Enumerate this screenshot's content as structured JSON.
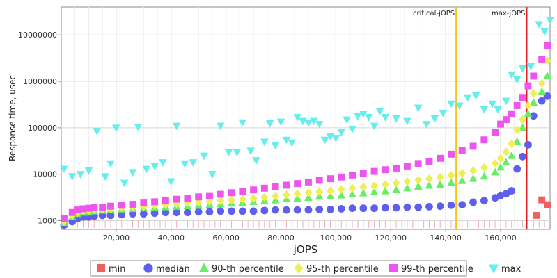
{
  "chart_data": {
    "type": "scatter",
    "title": "",
    "xlabel": "jOPS",
    "ylabel": "Response time, usec",
    "x_scale": "linear",
    "y_scale": "log",
    "xlim": [
      0,
      178000
    ],
    "ylim": [
      650,
      40000000
    ],
    "x_ticks": [
      20000,
      40000,
      60000,
      80000,
      100000,
      120000,
      140000,
      160000
    ],
    "x_tick_labels": [
      "20,000",
      "40,000",
      "60,000",
      "80,000",
      "100,000",
      "120,000",
      "140,000",
      "160,000"
    ],
    "y_ticks": [
      1000,
      10000,
      100000,
      1000000,
      10000000
    ],
    "y_tick_labels": [
      "1000",
      "10000",
      "100000",
      "1000000",
      "10000000"
    ],
    "grid": true,
    "legend_position": "bottom",
    "vertical_markers": [
      {
        "label": "critical-jOPS",
        "x": 143800,
        "color": "#f5c518"
      },
      {
        "label": "max-jOPS",
        "x": 169500,
        "color": "#e02020"
      }
    ],
    "series": [
      {
        "name": "min",
        "color": "#f06060",
        "marker": "square",
        "points": [
          [
            173000,
            1300
          ],
          [
            175000,
            2800
          ],
          [
            177000,
            2200
          ]
        ]
      },
      {
        "name": "median",
        "color": "#5f5fef",
        "marker": "circle",
        "points": [
          [
            1000,
            800
          ],
          [
            4000,
            950
          ],
          [
            6000,
            1100
          ],
          [
            8000,
            1200
          ],
          [
            10000,
            1200
          ],
          [
            12000,
            1250
          ],
          [
            15000,
            1300
          ],
          [
            18000,
            1300
          ],
          [
            22000,
            1350
          ],
          [
            26000,
            1400
          ],
          [
            30000,
            1400
          ],
          [
            34000,
            1450
          ],
          [
            38000,
            1500
          ],
          [
            42000,
            1500
          ],
          [
            46000,
            1500
          ],
          [
            50000,
            1550
          ],
          [
            54000,
            1550
          ],
          [
            58000,
            1600
          ],
          [
            62000,
            1600
          ],
          [
            66000,
            1600
          ],
          [
            70000,
            1600
          ],
          [
            74000,
            1650
          ],
          [
            78000,
            1700
          ],
          [
            82000,
            1700
          ],
          [
            86000,
            1700
          ],
          [
            90000,
            1700
          ],
          [
            94000,
            1750
          ],
          [
            98000,
            1750
          ],
          [
            102000,
            1800
          ],
          [
            106000,
            1850
          ],
          [
            110000,
            1850
          ],
          [
            114000,
            1850
          ],
          [
            118000,
            1900
          ],
          [
            122000,
            1900
          ],
          [
            126000,
            1950
          ],
          [
            130000,
            1950
          ],
          [
            134000,
            2000
          ],
          [
            138000,
            2050
          ],
          [
            142000,
            2150
          ],
          [
            146000,
            2200
          ],
          [
            150000,
            2500
          ],
          [
            154000,
            2700
          ],
          [
            158000,
            3100
          ],
          [
            160000,
            3500
          ],
          [
            162000,
            3800
          ],
          [
            164000,
            4400
          ],
          [
            166000,
            13000
          ],
          [
            168000,
            24000
          ],
          [
            170000,
            43000
          ],
          [
            172000,
            180000
          ],
          [
            175000,
            380000
          ],
          [
            177000,
            480000
          ]
        ]
      },
      {
        "name": "90-th percentile",
        "color": "#66ee66",
        "marker": "triangle-up",
        "points": [
          [
            1000,
            900
          ],
          [
            4000,
            1200
          ],
          [
            6000,
            1400
          ],
          [
            8000,
            1500
          ],
          [
            10000,
            1500
          ],
          [
            12000,
            1600
          ],
          [
            15000,
            1650
          ],
          [
            18000,
            1700
          ],
          [
            22000,
            1750
          ],
          [
            26000,
            1800
          ],
          [
            30000,
            1850
          ],
          [
            34000,
            1900
          ],
          [
            38000,
            1950
          ],
          [
            42000,
            2000
          ],
          [
            46000,
            2050
          ],
          [
            50000,
            2100
          ],
          [
            54000,
            2150
          ],
          [
            58000,
            2250
          ],
          [
            62000,
            2350
          ],
          [
            66000,
            2450
          ],
          [
            70000,
            2550
          ],
          [
            74000,
            2650
          ],
          [
            78000,
            2750
          ],
          [
            82000,
            2900
          ],
          [
            86000,
            3000
          ],
          [
            90000,
            3100
          ],
          [
            94000,
            3300
          ],
          [
            98000,
            3400
          ],
          [
            102000,
            3500
          ],
          [
            106000,
            3700
          ],
          [
            110000,
            3900
          ],
          [
            114000,
            4100
          ],
          [
            118000,
            4300
          ],
          [
            122000,
            4600
          ],
          [
            126000,
            5000
          ],
          [
            130000,
            5400
          ],
          [
            134000,
            5700
          ],
          [
            138000,
            6000
          ],
          [
            142000,
            6600
          ],
          [
            146000,
            7200
          ],
          [
            150000,
            8000
          ],
          [
            154000,
            9000
          ],
          [
            158000,
            11000
          ],
          [
            160000,
            14000
          ],
          [
            162000,
            18000
          ],
          [
            164000,
            25000
          ],
          [
            166000,
            50000
          ],
          [
            168000,
            100000
          ],
          [
            170000,
            200000
          ],
          [
            172000,
            350000
          ],
          [
            175000,
            600000
          ],
          [
            177000,
            1300000
          ]
        ]
      },
      {
        "name": "95-th percentile",
        "color": "#eeee55",
        "marker": "diamond",
        "points": [
          [
            1000,
            950
          ],
          [
            4000,
            1300
          ],
          [
            6000,
            1500
          ],
          [
            8000,
            1600
          ],
          [
            10000,
            1650
          ],
          [
            12000,
            1700
          ],
          [
            15000,
            1750
          ],
          [
            18000,
            1800
          ],
          [
            22000,
            1900
          ],
          [
            26000,
            1950
          ],
          [
            30000,
            2000
          ],
          [
            34000,
            2100
          ],
          [
            38000,
            2200
          ],
          [
            42000,
            2300
          ],
          [
            46000,
            2400
          ],
          [
            50000,
            2500
          ],
          [
            54000,
            2600
          ],
          [
            58000,
            2700
          ],
          [
            62000,
            2800
          ],
          [
            66000,
            2900
          ],
          [
            70000,
            3000
          ],
          [
            74000,
            3200
          ],
          [
            78000,
            3400
          ],
          [
            82000,
            3600
          ],
          [
            86000,
            3800
          ],
          [
            90000,
            4000
          ],
          [
            94000,
            4200
          ],
          [
            98000,
            4400
          ],
          [
            102000,
            4700
          ],
          [
            106000,
            5000
          ],
          [
            110000,
            5300
          ],
          [
            114000,
            5600
          ],
          [
            118000,
            6000
          ],
          [
            122000,
            6500
          ],
          [
            126000,
            7000
          ],
          [
            130000,
            7500
          ],
          [
            134000,
            8000
          ],
          [
            138000,
            8600
          ],
          [
            142000,
            9500
          ],
          [
            146000,
            10500
          ],
          [
            150000,
            12000
          ],
          [
            154000,
            14000
          ],
          [
            158000,
            17000
          ],
          [
            160000,
            22000
          ],
          [
            162000,
            30000
          ],
          [
            164000,
            45000
          ],
          [
            166000,
            90000
          ],
          [
            168000,
            150000
          ],
          [
            170000,
            300000
          ],
          [
            172000,
            550000
          ],
          [
            175000,
            900000
          ],
          [
            177000,
            2800000
          ]
        ]
      },
      {
        "name": "99-th percentile",
        "color": "#ee55ee",
        "marker": "square",
        "points": [
          [
            1000,
            1100
          ],
          [
            4000,
            1500
          ],
          [
            6000,
            1700
          ],
          [
            8000,
            1800
          ],
          [
            10000,
            1850
          ],
          [
            12000,
            1900
          ],
          [
            15000,
            1950
          ],
          [
            18000,
            2050
          ],
          [
            22000,
            2150
          ],
          [
            26000,
            2250
          ],
          [
            30000,
            2400
          ],
          [
            34000,
            2550
          ],
          [
            38000,
            2700
          ],
          [
            42000,
            2900
          ],
          [
            46000,
            3050
          ],
          [
            50000,
            3250
          ],
          [
            54000,
            3450
          ],
          [
            58000,
            3700
          ],
          [
            62000,
            4000
          ],
          [
            66000,
            4300
          ],
          [
            70000,
            4600
          ],
          [
            74000,
            5000
          ],
          [
            78000,
            5400
          ],
          [
            82000,
            5800
          ],
          [
            86000,
            6300
          ],
          [
            90000,
            6800
          ],
          [
            94000,
            7400
          ],
          [
            98000,
            8000
          ],
          [
            102000,
            8700
          ],
          [
            106000,
            9600
          ],
          [
            110000,
            10500
          ],
          [
            114000,
            11500
          ],
          [
            118000,
            12500
          ],
          [
            122000,
            13500
          ],
          [
            126000,
            15000
          ],
          [
            130000,
            17000
          ],
          [
            134000,
            19000
          ],
          [
            138000,
            22000
          ],
          [
            142000,
            27000
          ],
          [
            146000,
            32000
          ],
          [
            150000,
            40000
          ],
          [
            154000,
            55000
          ],
          [
            158000,
            80000
          ],
          [
            160000,
            120000
          ],
          [
            162000,
            150000
          ],
          [
            164000,
            200000
          ],
          [
            166000,
            300000
          ],
          [
            168000,
            450000
          ],
          [
            170000,
            800000
          ],
          [
            172000,
            1300000
          ],
          [
            175000,
            3000000
          ],
          [
            177000,
            6000000
          ]
        ]
      },
      {
        "name": "max",
        "color": "#66eeee",
        "marker": "triangle-down",
        "points": [
          [
            1000,
            13000
          ],
          [
            4000,
            9000
          ],
          [
            7000,
            10000
          ],
          [
            10000,
            12000
          ],
          [
            13000,
            85000
          ],
          [
            16000,
            9000
          ],
          [
            18000,
            17000
          ],
          [
            20000,
            100000
          ],
          [
            23000,
            6500
          ],
          [
            26000,
            11000
          ],
          [
            28000,
            105000
          ],
          [
            31000,
            13000
          ],
          [
            34000,
            15000
          ],
          [
            37000,
            18000
          ],
          [
            40000,
            7000
          ],
          [
            42000,
            110000
          ],
          [
            45000,
            17000
          ],
          [
            48000,
            18000
          ],
          [
            52000,
            25000
          ],
          [
            55000,
            10000
          ],
          [
            58000,
            110000
          ],
          [
            61000,
            30000
          ],
          [
            64000,
            30000
          ],
          [
            66000,
            130000
          ],
          [
            69000,
            32000
          ],
          [
            71000,
            20000
          ],
          [
            74000,
            50000
          ],
          [
            76000,
            125000
          ],
          [
            78000,
            42000
          ],
          [
            80000,
            135000
          ],
          [
            82000,
            55000
          ],
          [
            84000,
            48000
          ],
          [
            86000,
            170000
          ],
          [
            88000,
            140000
          ],
          [
            90000,
            130000
          ],
          [
            92000,
            140000
          ],
          [
            94000,
            120000
          ],
          [
            96000,
            55000
          ],
          [
            98000,
            65000
          ],
          [
            100000,
            60000
          ],
          [
            102000,
            80000
          ],
          [
            104000,
            150000
          ],
          [
            106000,
            95000
          ],
          [
            108000,
            180000
          ],
          [
            110000,
            200000
          ],
          [
            112000,
            170000
          ],
          [
            114000,
            110000
          ],
          [
            116000,
            230000
          ],
          [
            118000,
            170000
          ],
          [
            122000,
            160000
          ],
          [
            126000,
            140000
          ],
          [
            130000,
            270000
          ],
          [
            133000,
            120000
          ],
          [
            136000,
            160000
          ],
          [
            139000,
            210000
          ],
          [
            142000,
            330000
          ],
          [
            145000,
            300000
          ],
          [
            148000,
            450000
          ],
          [
            151000,
            500000
          ],
          [
            154000,
            250000
          ],
          [
            157000,
            330000
          ],
          [
            159000,
            250000
          ],
          [
            162000,
            380000
          ],
          [
            164000,
            1400000
          ],
          [
            166000,
            1100000
          ],
          [
            168000,
            1900000
          ],
          [
            171000,
            2100000
          ],
          [
            174000,
            17000000
          ],
          [
            176000,
            12000000
          ],
          [
            178000,
            21000000
          ]
        ]
      }
    ]
  }
}
